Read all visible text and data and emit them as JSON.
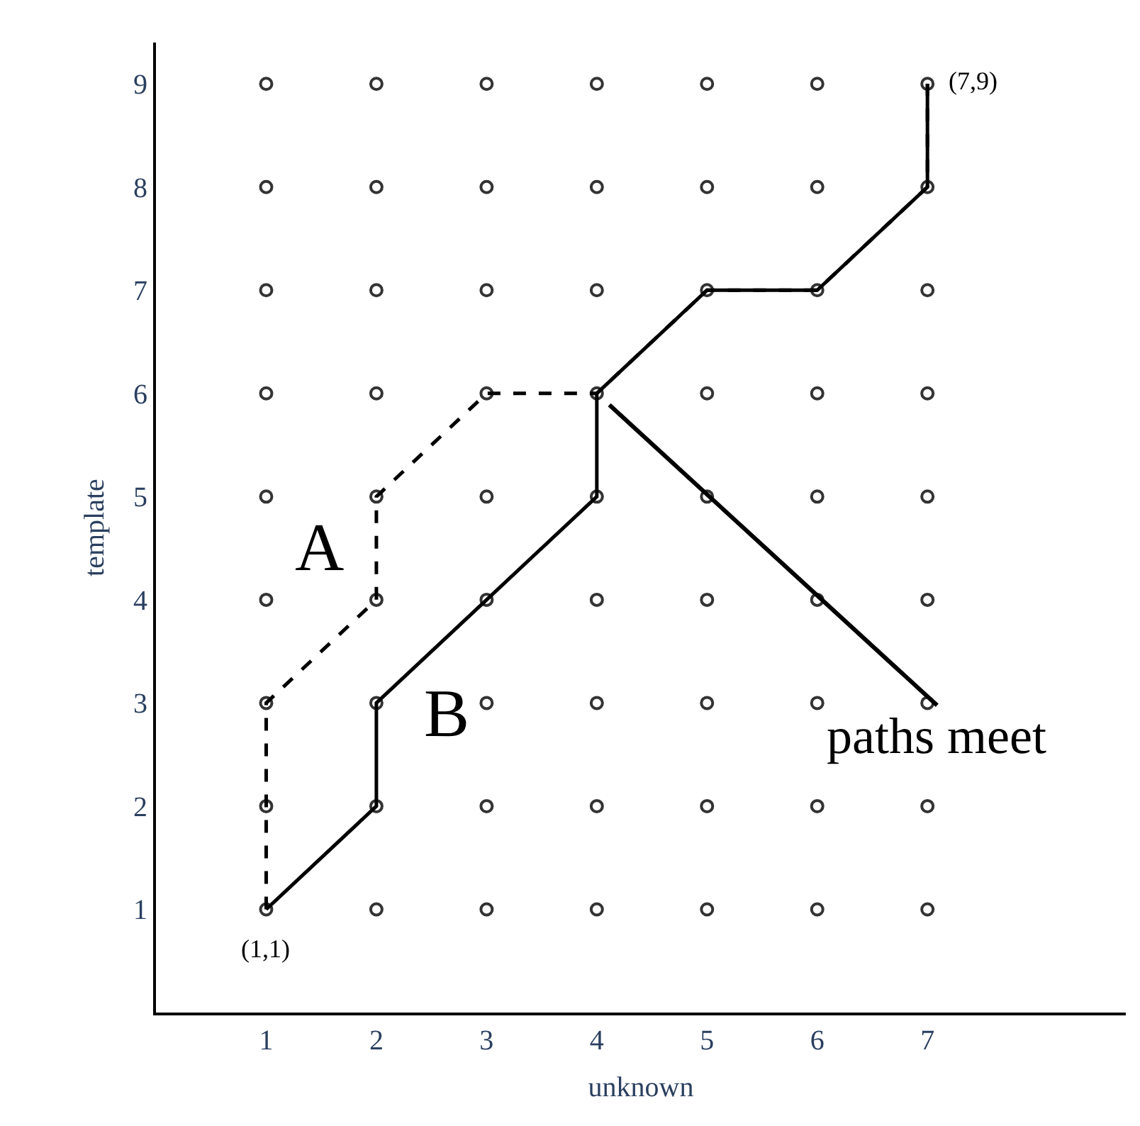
{
  "chart_data": {
    "type": "line",
    "xlabel": "unknown",
    "ylabel": "template",
    "xlim": [
      0,
      8.8
    ],
    "ylim": [
      0,
      9.4
    ],
    "xticks": [
      1,
      2,
      3,
      4,
      5,
      6,
      7
    ],
    "yticks": [
      1,
      2,
      3,
      4,
      5,
      6,
      7,
      8,
      9
    ],
    "series": [
      {
        "type": "scatter",
        "marker": "circle",
        "color": "#333333",
        "x": [
          1,
          2,
          3,
          4,
          5,
          6,
          7,
          1,
          2,
          3,
          4,
          5,
          6,
          7,
          1,
          2,
          3,
          4,
          5,
          6,
          7,
          1,
          2,
          3,
          4,
          5,
          6,
          7,
          1,
          2,
          3,
          4,
          5,
          6,
          7,
          1,
          2,
          3,
          4,
          5,
          6,
          7,
          1,
          2,
          3,
          4,
          5,
          6,
          7,
          1,
          2,
          3,
          4,
          5,
          6,
          7,
          1,
          2,
          3,
          4,
          5,
          6,
          7
        ],
        "values": [
          1,
          1,
          1,
          1,
          1,
          1,
          1,
          2,
          2,
          2,
          2,
          2,
          2,
          2,
          3,
          3,
          3,
          3,
          3,
          3,
          3,
          4,
          4,
          4,
          4,
          4,
          4,
          4,
          5,
          5,
          5,
          5,
          5,
          5,
          5,
          6,
          6,
          6,
          6,
          6,
          6,
          6,
          7,
          7,
          7,
          7,
          7,
          7,
          7,
          8,
          8,
          8,
          8,
          8,
          8,
          8,
          9,
          9,
          9,
          9,
          9,
          9,
          9
        ]
      },
      {
        "line_style": "dashed",
        "marker": "none",
        "color": "#000000",
        "x": [
          1,
          1,
          1,
          2,
          2,
          3,
          4,
          5,
          6,
          7,
          7
        ],
        "values": [
          1,
          2,
          3,
          4,
          5,
          6,
          6,
          7,
          7,
          8,
          9
        ]
      },
      {
        "line_style": "solid",
        "marker": "none",
        "color": "#000000",
        "x": [
          1,
          2,
          2,
          3,
          4,
          4,
          5,
          6,
          7,
          7
        ],
        "values": [
          1,
          2,
          3,
          4,
          5,
          6,
          7,
          7,
          8,
          9
        ]
      }
    ],
    "annotations": [
      {
        "text": "A",
        "x": 2,
        "y": 4.5
      },
      {
        "text": "B",
        "x": 2,
        "y": 3
      },
      {
        "text": "(1,1)",
        "x": 1,
        "y": 1
      },
      {
        "text": "(7,9)",
        "x": 7,
        "y": 9
      },
      {
        "text": "paths meet",
        "x": 4,
        "y": 6
      }
    ]
  }
}
